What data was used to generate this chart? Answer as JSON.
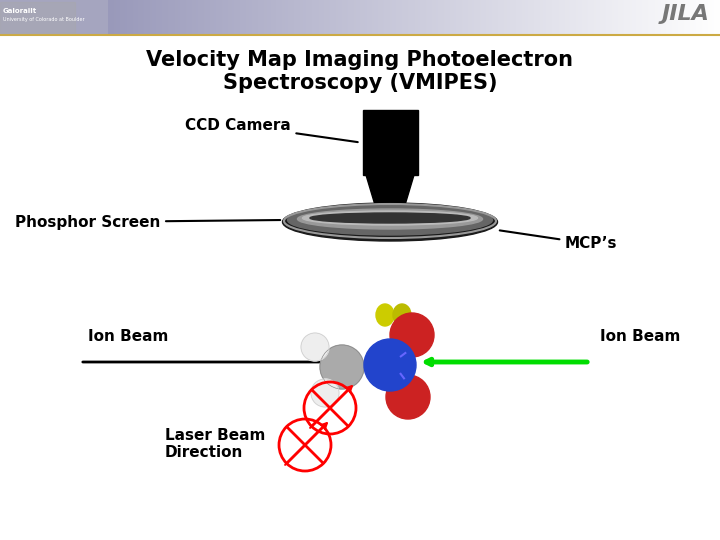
{
  "title_line1": "Velocity Map Imaging Photoelectron",
  "title_line2": "Spectroscopy (VMIPES)",
  "bg_color": "#ffffff",
  "title_fontsize": 15,
  "label_fontsize": 11,
  "ccd_label": "CCD Camera",
  "phosphor_label": "Phosphor Screen",
  "mcp_label": "MCP’s",
  "ion_beam_label_left": "Ion Beam",
  "ion_beam_label_right": "Ion Beam",
  "laser_beam_label": "Laser Beam\nDirection",
  "header_colors": [
    "#aaaacc",
    "#9999bb",
    "#bbbbcc",
    "#ddddee",
    "#eeeeee",
    "#ffffff"
  ],
  "header_line_color": "#ccaa44",
  "jila_color": "#777777",
  "jila_text": "JILA"
}
